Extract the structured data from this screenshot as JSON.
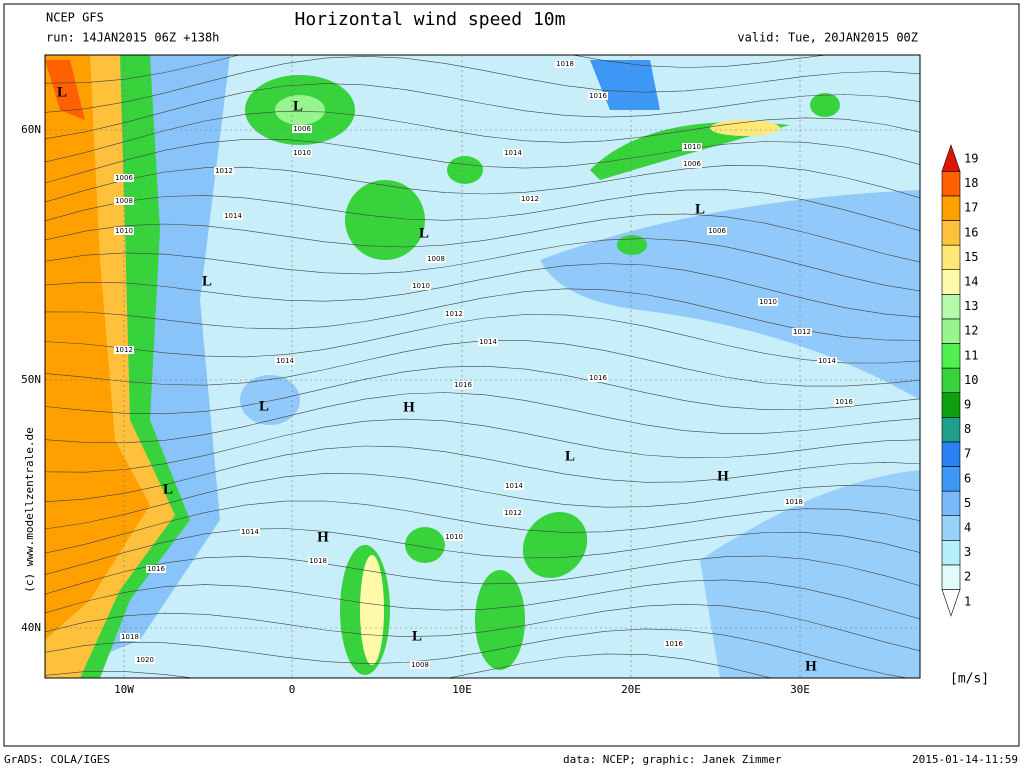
{
  "header": {
    "model": "NCEP GFS",
    "run": "run: 14JAN2015 06Z +138h",
    "title": "Horizontal wind speed 10m",
    "valid": "valid: Tue, 20JAN2015 00Z"
  },
  "axes": {
    "lat": [
      "60N",
      "50N",
      "40N"
    ],
    "lon": [
      "10W",
      "0",
      "10E",
      "20E",
      "30E"
    ]
  },
  "credit": "(c) www.modellzentrale.de",
  "isobars": [
    "1018",
    "1016",
    "1006",
    "1010",
    "1014",
    "1010",
    "1006",
    "1012",
    "1006",
    "1008",
    "1014",
    "1012",
    "1010",
    "1008",
    "1006",
    "1010",
    "1012",
    "1010",
    "1014",
    "1012",
    "1012",
    "1014",
    "1014",
    "1016",
    "1016",
    "1016",
    "1018",
    "1014",
    "1012",
    "1014",
    "1010",
    "1018",
    "1016",
    "1018",
    "1016",
    "1020",
    "1008"
  ],
  "centers": [
    "L",
    "L",
    "L",
    "L",
    "L",
    "L",
    "L",
    "L",
    "L",
    "H",
    "H",
    "H",
    "H"
  ],
  "colorbar": {
    "labels": [
      1,
      2,
      3,
      4,
      5,
      6,
      7,
      8,
      9,
      10,
      11,
      12,
      13,
      14,
      15,
      16,
      17,
      18,
      19
    ],
    "colors": [
      "#ffffff",
      "#e1fafa",
      "#b4f0fa",
      "#96d2fa",
      "#78b9fa",
      "#3c97f5",
      "#2882f0",
      "#1ea08c",
      "#0fa00f",
      "#37d23c",
      "#50f050",
      "#96f58c",
      "#b4faaa",
      "#fffaaa",
      "#ffe878",
      "#ffc03c",
      "#ffa000",
      "#ff6000",
      "#e11400"
    ],
    "unit": "[m/s]"
  },
  "footer": {
    "left": "GrADS: COLA/IGES",
    "center": "data: NCEP; graphic: Janek Zimmer",
    "right": "2015-01-14-11:59"
  }
}
